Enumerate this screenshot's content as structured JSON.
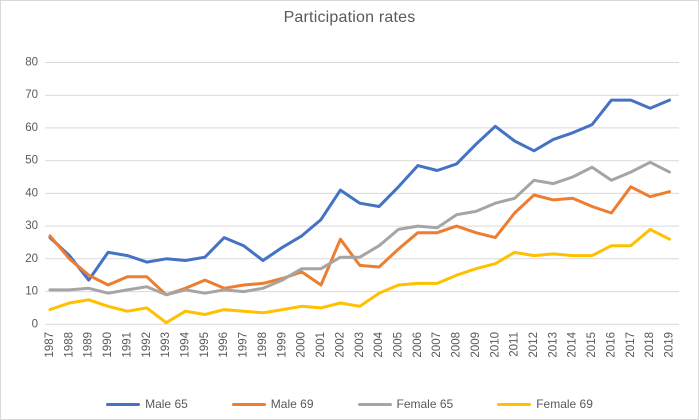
{
  "window": {
    "background": "#ffffff",
    "border_color": "#d9d9d9"
  },
  "chart_data": {
    "type": "line",
    "title": "Participation rates",
    "x": [
      1987,
      1988,
      1989,
      1990,
      1991,
      1992,
      1993,
      1994,
      1995,
      1996,
      1997,
      1998,
      1999,
      2000,
      2001,
      2002,
      2003,
      2004,
      2005,
      2006,
      2007,
      2008,
      2009,
      2010,
      2011,
      2012,
      2013,
      2014,
      2015,
      2016,
      2017,
      2018,
      2019
    ],
    "series": [
      {
        "name": "Male 65",
        "color": "#4472C4",
        "values": [
          26.5,
          21,
          13.5,
          22,
          21,
          19,
          20,
          19.5,
          20.5,
          26.5,
          24,
          19.5,
          23.5,
          27,
          32,
          41,
          37,
          36,
          42,
          48.5,
          47,
          49,
          55,
          60.5,
          56,
          53,
          56.5,
          58.5,
          61,
          68.5,
          68.5,
          66,
          68.5
        ]
      },
      {
        "name": "Male 69",
        "color": "#ED7D31",
        "values": [
          27,
          20,
          15,
          12,
          14.5,
          14.5,
          9,
          11,
          13.5,
          11,
          12,
          12.5,
          14,
          16,
          12,
          26,
          18,
          17.5,
          23,
          28,
          28,
          30,
          28,
          26.5,
          34,
          39.5,
          38,
          38.5,
          36,
          34,
          42,
          39,
          40.5
        ]
      },
      {
        "name": "Female 65",
        "color": "#A5A5A5",
        "values": [
          10.5,
          10.5,
          11,
          9.5,
          10.5,
          11.5,
          9,
          10.5,
          9.5,
          10.5,
          10,
          11,
          13.5,
          17,
          17,
          20.5,
          20.5,
          24,
          29,
          30,
          29.5,
          33.5,
          34.5,
          37,
          38.5,
          44,
          43,
          45,
          48,
          44,
          46.5,
          49.5,
          46.5
        ]
      },
      {
        "name": "Female 69",
        "color": "#FFC000",
        "values": [
          4.5,
          6.5,
          7.5,
          5.5,
          4,
          5,
          0.5,
          4,
          3,
          4.5,
          4,
          3.5,
          4.5,
          5.5,
          5,
          6.5,
          5.5,
          9.5,
          12,
          12.5,
          12.5,
          15,
          17,
          18.5,
          22,
          21,
          21.5,
          21,
          21,
          24,
          24,
          29,
          26
        ]
      }
    ],
    "ylim": [
      0,
      80
    ],
    "ytick_step": 10,
    "yticks": [
      0,
      10,
      20,
      30,
      40,
      50,
      60,
      70,
      80
    ],
    "grid": "horizontal",
    "grid_color": "#d9d9d9",
    "text_color": "#595959",
    "legend_position": "bottom",
    "legend_labels": [
      "Male 65",
      "Male 69",
      "Female 65",
      "Female 69"
    ]
  }
}
